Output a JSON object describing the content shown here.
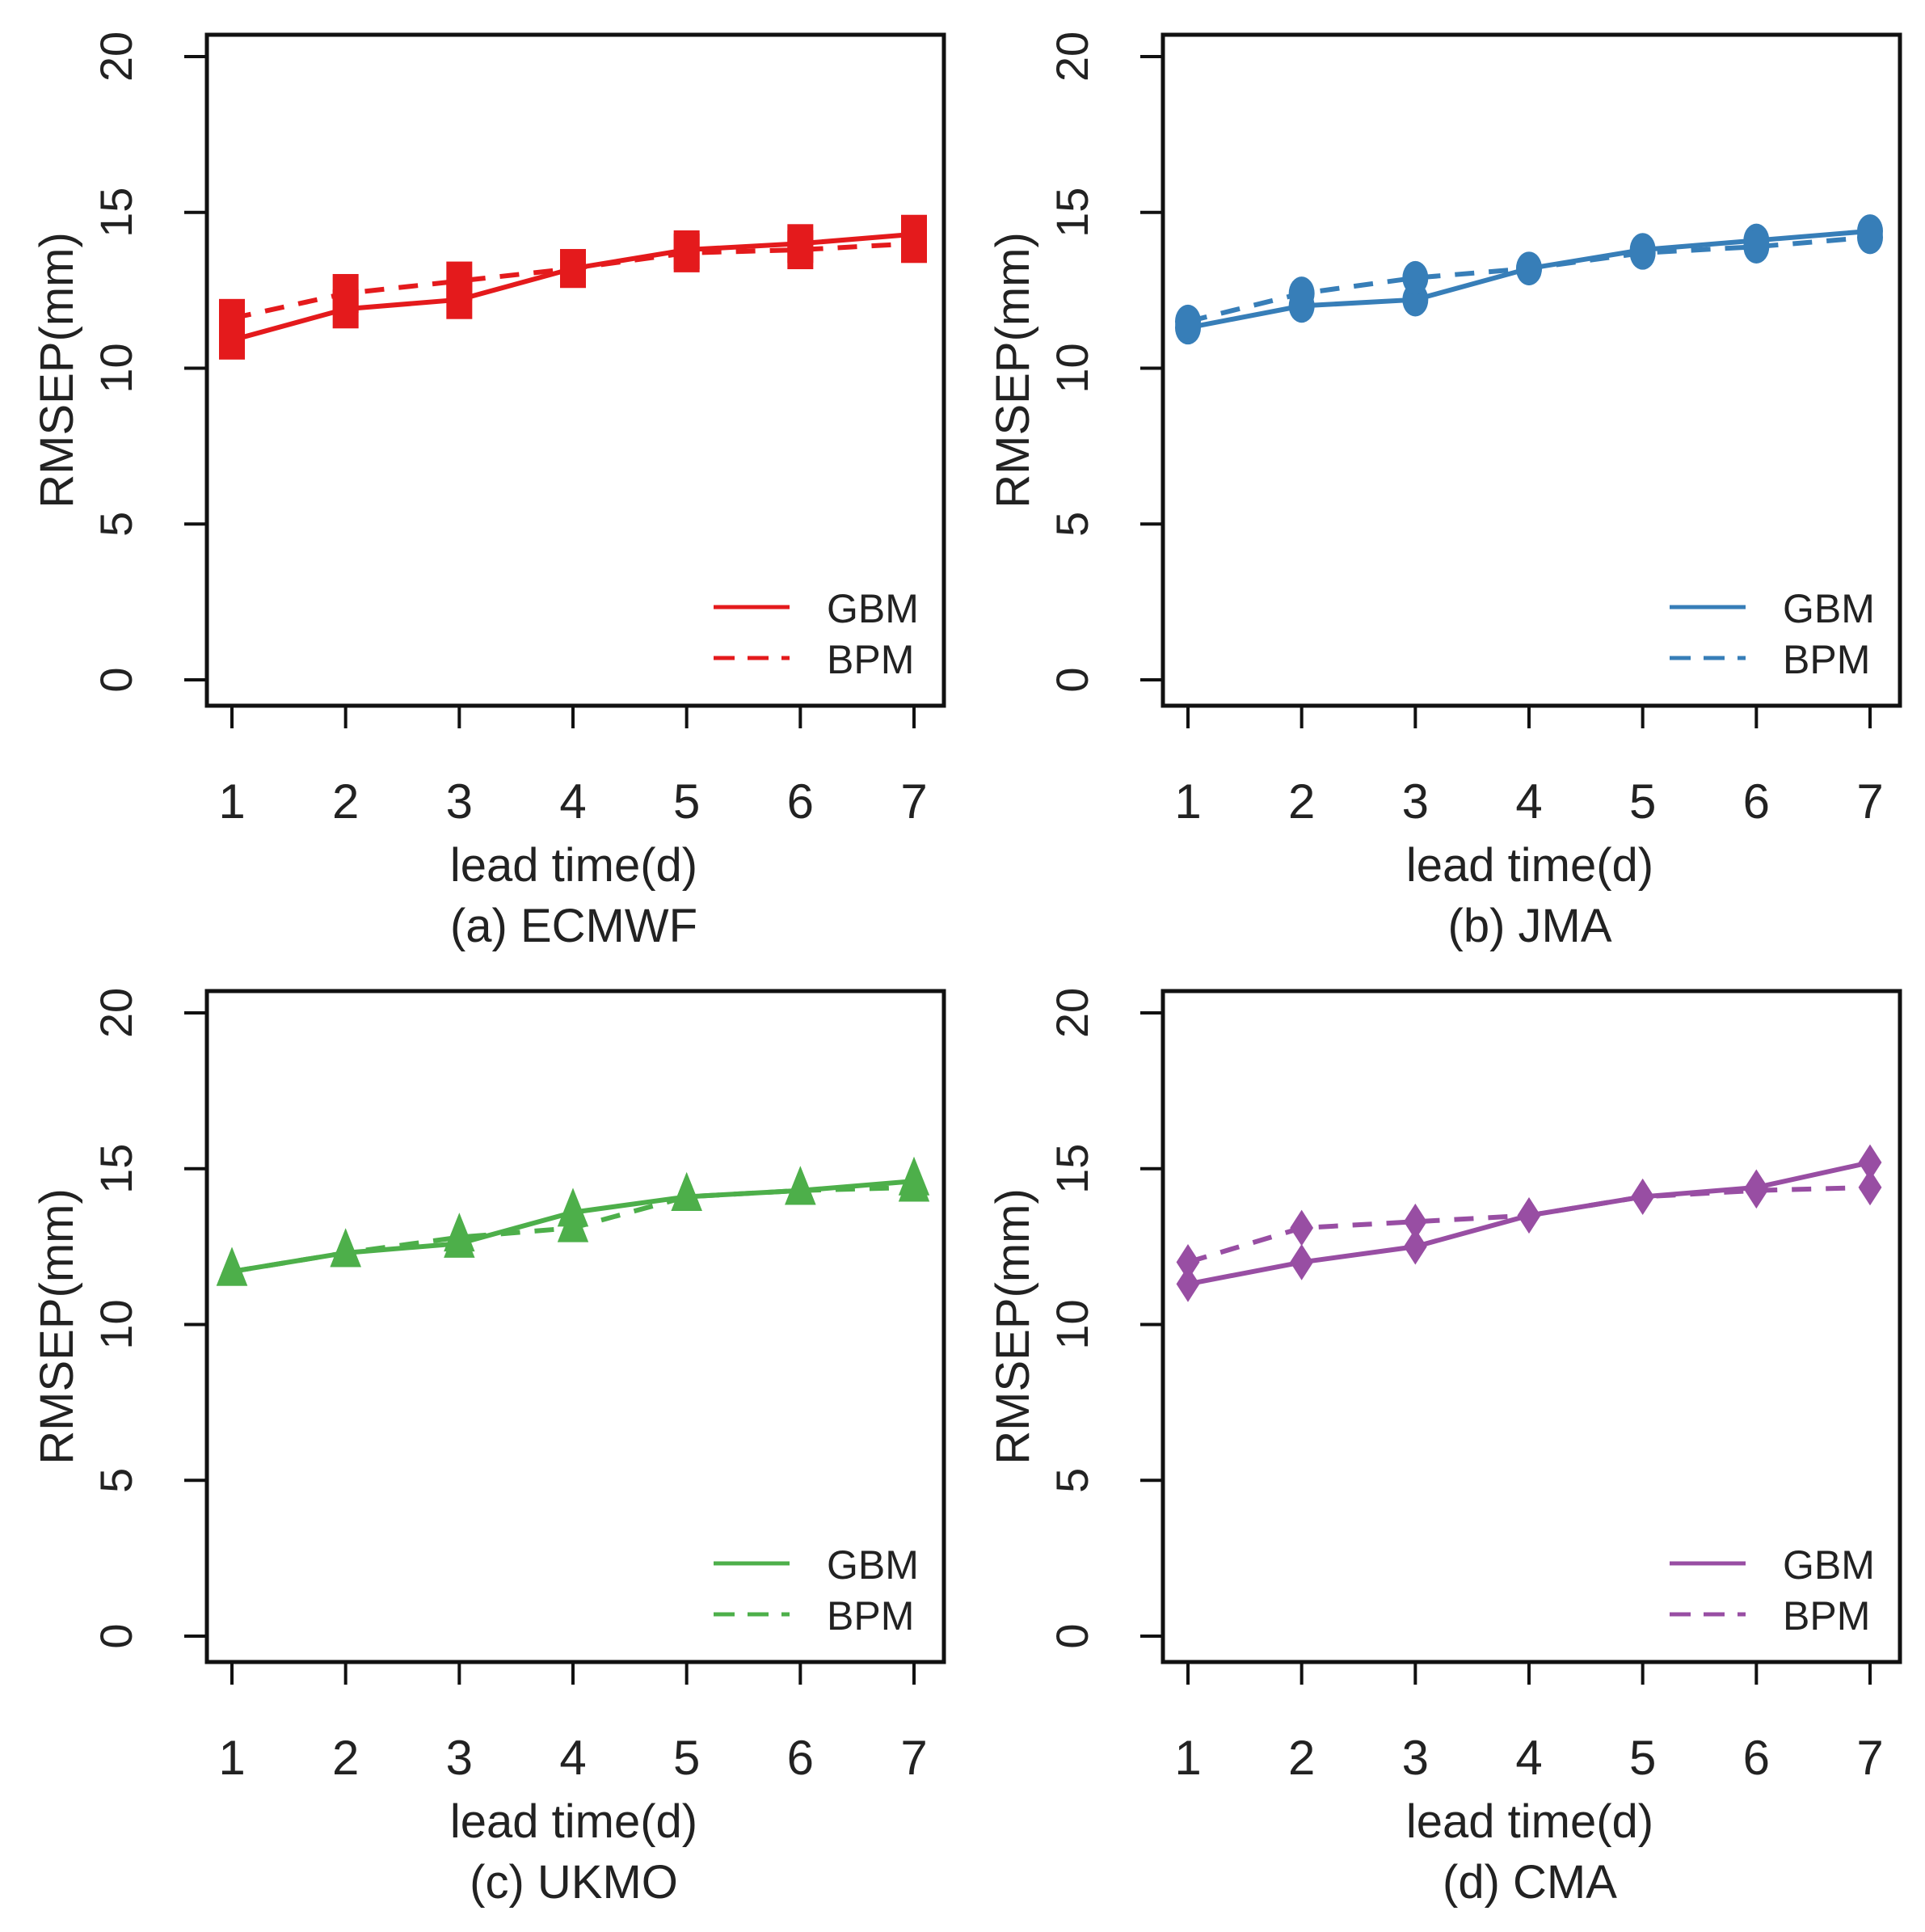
{
  "chart_data": [
    {
      "type": "line",
      "title": "(a) ECMWF",
      "xlabel": "lead time(d)",
      "ylabel": "RMSEP(mm)",
      "x": [
        1,
        2,
        3,
        4,
        5,
        6,
        7
      ],
      "xticks": [
        "1",
        "2",
        "3",
        "4",
        "5",
        "6",
        "7"
      ],
      "yticks": [
        "0",
        "5",
        "10",
        "15",
        "20"
      ],
      "ylim": [
        0,
        20
      ],
      "color": "#e41a1c",
      "marker": "square",
      "legend_position": "bottom-right",
      "series": [
        {
          "name": "GBM",
          "style": "solid",
          "values": [
            10.9,
            11.9,
            12.2,
            13.2,
            13.8,
            14.0,
            14.3
          ]
        },
        {
          "name": "BPM",
          "style": "dashed",
          "values": [
            11.6,
            12.4,
            12.8,
            13.2,
            13.7,
            13.8,
            14.0
          ]
        }
      ]
    },
    {
      "type": "line",
      "title": "(b) JMA",
      "xlabel": "lead time(d)",
      "ylabel": "RMSEP(mm)",
      "x": [
        1,
        2,
        3,
        4,
        5,
        6,
        7
      ],
      "xticks": [
        "1",
        "2",
        "3",
        "4",
        "5",
        "6",
        "7"
      ],
      "yticks": [
        "0",
        "5",
        "10",
        "15",
        "20"
      ],
      "ylim": [
        0,
        20
      ],
      "color": "#377eb8",
      "marker": "circle",
      "legend_position": "bottom-right",
      "series": [
        {
          "name": "GBM",
          "style": "solid",
          "values": [
            11.3,
            12.0,
            12.2,
            13.2,
            13.8,
            14.1,
            14.4
          ]
        },
        {
          "name": "BPM",
          "style": "dashed",
          "values": [
            11.5,
            12.4,
            12.9,
            13.2,
            13.7,
            13.9,
            14.2
          ]
        }
      ]
    },
    {
      "type": "line",
      "title": "(c) UKMO",
      "xlabel": "lead time(d)",
      "ylabel": "RMSEP(mm)",
      "x": [
        1,
        2,
        3,
        4,
        5,
        6,
        7
      ],
      "xticks": [
        "1",
        "2",
        "3",
        "4",
        "5",
        "6",
        "7"
      ],
      "yticks": [
        "0",
        "5",
        "10",
        "15",
        "20"
      ],
      "ylim": [
        0,
        20
      ],
      "color": "#4daf4a",
      "marker": "triangle",
      "legend_position": "bottom-right",
      "series": [
        {
          "name": "GBM",
          "style": "solid",
          "values": [
            11.7,
            12.3,
            12.6,
            13.6,
            14.1,
            14.3,
            14.6
          ]
        },
        {
          "name": "BPM",
          "style": "dashed",
          "values": [
            11.7,
            12.3,
            12.8,
            13.1,
            14.1,
            14.3,
            14.4
          ]
        }
      ]
    },
    {
      "type": "line",
      "title": "(d) CMA",
      "xlabel": "lead time(d)",
      "ylabel": "RMSEP(mm)",
      "x": [
        1,
        2,
        3,
        4,
        5,
        6,
        7
      ],
      "xticks": [
        "1",
        "2",
        "3",
        "4",
        "5",
        "6",
        "7"
      ],
      "yticks": [
        "0",
        "5",
        "10",
        "15",
        "20"
      ],
      "ylim": [
        0,
        20
      ],
      "color": "#984ea3",
      "marker": "diamond",
      "legend_position": "bottom-right",
      "series": [
        {
          "name": "GBM",
          "style": "solid",
          "values": [
            11.3,
            12.0,
            12.5,
            13.5,
            14.1,
            14.4,
            15.2
          ]
        },
        {
          "name": "BPM",
          "style": "dashed",
          "values": [
            12.0,
            13.1,
            13.3,
            13.5,
            14.1,
            14.3,
            14.4
          ]
        }
      ]
    }
  ]
}
